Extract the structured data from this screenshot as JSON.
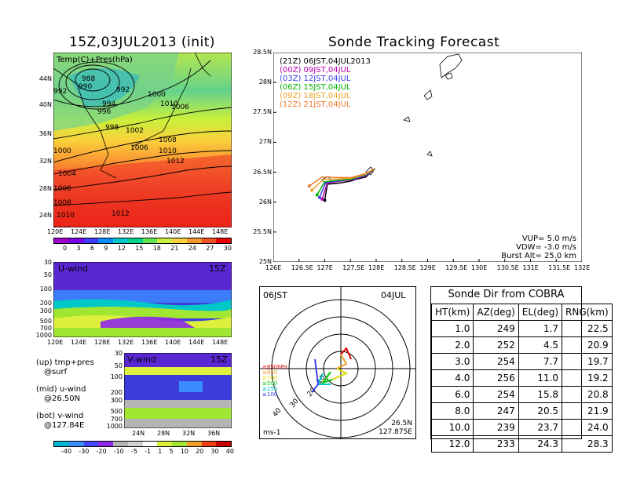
{
  "left_title": "15Z,03JUL2013 (init)",
  "right_title": "Sonde Tracking Forecast",
  "map_panel": {
    "label": "Temp(C)+Pres(hPa)",
    "lon_ticks": [
      "120E",
      "124E",
      "128E",
      "132E",
      "136E",
      "140E",
      "144E",
      "148E"
    ],
    "lat_ticks": [
      "44N",
      "40N",
      "36N",
      "32N",
      "28N",
      "24N"
    ],
    "isobar_labels": [
      "988",
      "990",
      "992",
      "992",
      "994",
      "996",
      "998",
      "1000",
      "1000",
      "1000",
      "1002",
      "1004",
      "1006",
      "1006",
      "1006",
      "1008",
      "1008",
      "1010",
      "1010",
      "1012",
      "1012",
      "1010"
    ],
    "colorbar_labels": [
      "0",
      "3",
      "6",
      "9",
      "12",
      "15",
      "18",
      "21",
      "24",
      "27",
      "30"
    ],
    "colorbar_colors": [
      "#a000c8",
      "#7a00e6",
      "#3c3cff",
      "#0a8cff",
      "#00c8c8",
      "#00d28c",
      "#64e650",
      "#c8f03c",
      "#fad23c",
      "#fa9632",
      "#f05028",
      "#e60000"
    ]
  },
  "u_panel": {
    "label": "U-wind",
    "time": "15Z",
    "y_ticks": [
      "30",
      "50",
      "100",
      "200",
      "300",
      "500",
      "700",
      "1000"
    ],
    "x_ticks": [
      "120E",
      "124E",
      "128E",
      "132E",
      "136E",
      "140E",
      "144E",
      "148E"
    ]
  },
  "v_panel": {
    "label": "V-wind",
    "time": "15Z",
    "y_ticks": [
      "30",
      "50",
      "100",
      "200",
      "300",
      "500",
      "700",
      "1000"
    ],
    "x_ticks": [
      "24N",
      "28N",
      "32N",
      "36N"
    ]
  },
  "notes": [
    {
      "a": "(up)  tmp+pres",
      "b": "@surf"
    },
    {
      "a": "(mid)  u-wind",
      "b": "@26.50N"
    },
    {
      "a": "(bot)  v-wind",
      "b": "@127.84E"
    }
  ],
  "wind_colorbar": {
    "labels": [
      "-40",
      "-30",
      "-20",
      "-10",
      "-5",
      "-1",
      "1",
      "5",
      "10",
      "20",
      "30",
      "40"
    ],
    "colors": [
      "#00b4d2",
      "#3c8cff",
      "#4646ff",
      "#8c28e6",
      "#b4b4b4",
      "#d2d2d2",
      "#ffffff",
      "#dcf03c",
      "#a0e632",
      "#f0a028",
      "#f03c14",
      "#c80000"
    ]
  },
  "track_map": {
    "legend": [
      {
        "code": "(21Z)",
        "time": "06JST,04JUL2013",
        "color": "#000000"
      },
      {
        "code": "(00Z)",
        "time": "09JST,04JUL",
        "color": "#b400b4"
      },
      {
        "code": "(03Z)",
        "time": "12JST,04JUL",
        "color": "#3c3cf0"
      },
      {
        "code": "(06Z)",
        "time": "15JST,04JUL",
        "color": "#00b400"
      },
      {
        "code": "(09Z)",
        "time": "18JST,04JUL",
        "color": "#f0a028"
      },
      {
        "code": "(12Z)",
        "time": "21JST,04JUL",
        "color": "#f07828"
      }
    ],
    "lat_ticks": [
      "28.5N",
      "28N",
      "27.5N",
      "27N",
      "26.5N",
      "26N",
      "25.5N",
      "25N"
    ],
    "lon_ticks": [
      "126E",
      "126.5E",
      "127E",
      "127.5E",
      "128E",
      "128.5E",
      "129E",
      "129.5E",
      "130E",
      "130.5E",
      "131E",
      "131.5E",
      "132E"
    ],
    "params": [
      "VUP=  5.0  m/s",
      "VDW= -3.0  m/s",
      "Burst Alt=  25.0  km"
    ]
  },
  "polar": {
    "time_left": "06JST",
    "date_right": "04JUL",
    "levels": [
      {
        "label": "≥850hPa",
        "color": "#e60000"
      },
      {
        "label": "≥850",
        "color": "#f0a028"
      },
      {
        "label": "≥700",
        "color": "#dcdc00"
      },
      {
        "label": "≥500",
        "color": "#00c800"
      },
      {
        "label": "≥250",
        "color": "#00c8c8"
      },
      {
        "label": "≥100",
        "color": "#3c3cf0"
      }
    ],
    "ring_labels": [
      "10",
      "20",
      "30",
      "40"
    ],
    "unit": "ms-1",
    "loc_lat": "26.5N",
    "loc_lon": "127.875E"
  },
  "sonde_table": {
    "title": "Sonde Dir from COBRA",
    "headers": [
      "HT(km)",
      "AZ(deg)",
      "EL(deg)",
      "RNG(km)"
    ],
    "rows": [
      [
        "1.0",
        "249",
        "1.7",
        "22.5"
      ],
      [
        "2.0",
        "252",
        "4.5",
        "20.9"
      ],
      [
        "3.0",
        "254",
        "7.7",
        "19.7"
      ],
      [
        "4.0",
        "256",
        "11.0",
        "19.2"
      ],
      [
        "6.0",
        "254",
        "15.8",
        "20.8"
      ],
      [
        "8.0",
        "247",
        "20.5",
        "21.9"
      ],
      [
        "10.0",
        "239",
        "23.7",
        "24.0"
      ],
      [
        "12.0",
        "233",
        "24.3",
        "28.3"
      ]
    ]
  },
  "chart_data": [
    {
      "type": "heatmap",
      "title": "15Z,03JUL2013 (init)",
      "label": "Temp(C)+Pres(hPa)",
      "xlim": [
        120,
        150
      ],
      "ylim": [
        22,
        47
      ],
      "colorbar": [
        0,
        3,
        6,
        9,
        12,
        15,
        18,
        21,
        24,
        27,
        30
      ]
    },
    {
      "type": "heatmap",
      "label": "U-wind",
      "time": "15Z",
      "x_ticks": [
        "120E",
        "124E",
        "128E",
        "132E",
        "136E",
        "140E",
        "144E",
        "148E"
      ],
      "y_ticks_hPa": [
        30,
        50,
        100,
        200,
        300,
        500,
        700,
        1000
      ]
    },
    {
      "type": "heatmap",
      "label": "V-wind",
      "time": "15Z",
      "x_ticks": [
        "24N",
        "28N",
        "32N",
        "36N"
      ],
      "y_ticks_hPa": [
        30,
        50,
        100,
        200,
        300,
        500,
        700,
        1000
      ]
    },
    {
      "type": "line",
      "title": "Sonde Tracking Forecast",
      "xlim": [
        126,
        132
      ],
      "ylim": [
        25,
        28.5
      ],
      "series": [
        {
          "name": "(21Z) 06JST,04JUL2013",
          "x": [
            127.0,
            127.05,
            127.3,
            127.5,
            127.6,
            127.8,
            127.95
          ],
          "y": [
            26.03,
            26.3,
            26.32,
            26.35,
            26.38,
            26.42,
            26.55
          ]
        },
        {
          "name": "(00Z) 09JST,04JUL",
          "x": [
            126.95,
            127.05,
            127.3,
            127.5,
            127.6,
            127.8,
            127.97
          ],
          "y": [
            26.05,
            26.32,
            26.35,
            26.37,
            26.39,
            26.44,
            26.55
          ]
        },
        {
          "name": "(03Z) 12JST,04JUL",
          "x": [
            126.9,
            127.02,
            127.3,
            127.5,
            127.6,
            127.8,
            127.98
          ],
          "y": [
            26.08,
            26.33,
            26.36,
            26.38,
            26.4,
            26.45,
            26.56
          ]
        },
        {
          "name": "(06Z) 15JST,04JUL",
          "x": [
            126.85,
            127.0,
            127.3,
            127.5,
            127.6,
            127.8,
            127.98
          ],
          "y": [
            26.12,
            26.34,
            26.37,
            26.38,
            26.41,
            26.46,
            26.56
          ]
        },
        {
          "name": "(09Z) 18JST,04JUL",
          "x": [
            126.75,
            126.97,
            127.3,
            127.5,
            127.6,
            127.8,
            127.97
          ],
          "y": [
            26.2,
            26.38,
            26.39,
            26.4,
            26.42,
            26.47,
            26.56
          ]
        },
        {
          "name": "(12Z) 21JST,04JUL",
          "x": [
            126.7,
            126.95,
            127.3,
            127.5,
            127.6,
            127.8,
            127.97
          ],
          "y": [
            26.27,
            26.42,
            26.41,
            26.41,
            26.43,
            26.48,
            26.56
          ]
        }
      ],
      "VUP_mps": 5.0,
      "VDW_mps": -3.0,
      "burst_alt_km": 25.0
    },
    {
      "type": "table",
      "title": "Sonde Dir from COBRA",
      "columns": [
        "HT(km)",
        "AZ(deg)",
        "EL(deg)",
        "RNG(km)"
      ],
      "rows": [
        [
          1.0,
          249,
          1.7,
          22.5
        ],
        [
          2.0,
          252,
          4.5,
          20.9
        ],
        [
          3.0,
          254,
          7.7,
          19.7
        ],
        [
          4.0,
          256,
          11.0,
          19.2
        ],
        [
          6.0,
          254,
          15.8,
          20.8
        ],
        [
          8.0,
          247,
          20.5,
          21.9
        ],
        [
          10.0,
          239,
          23.7,
          24.0
        ],
        [
          12.0,
          233,
          24.3,
          28.3
        ]
      ]
    }
  ]
}
